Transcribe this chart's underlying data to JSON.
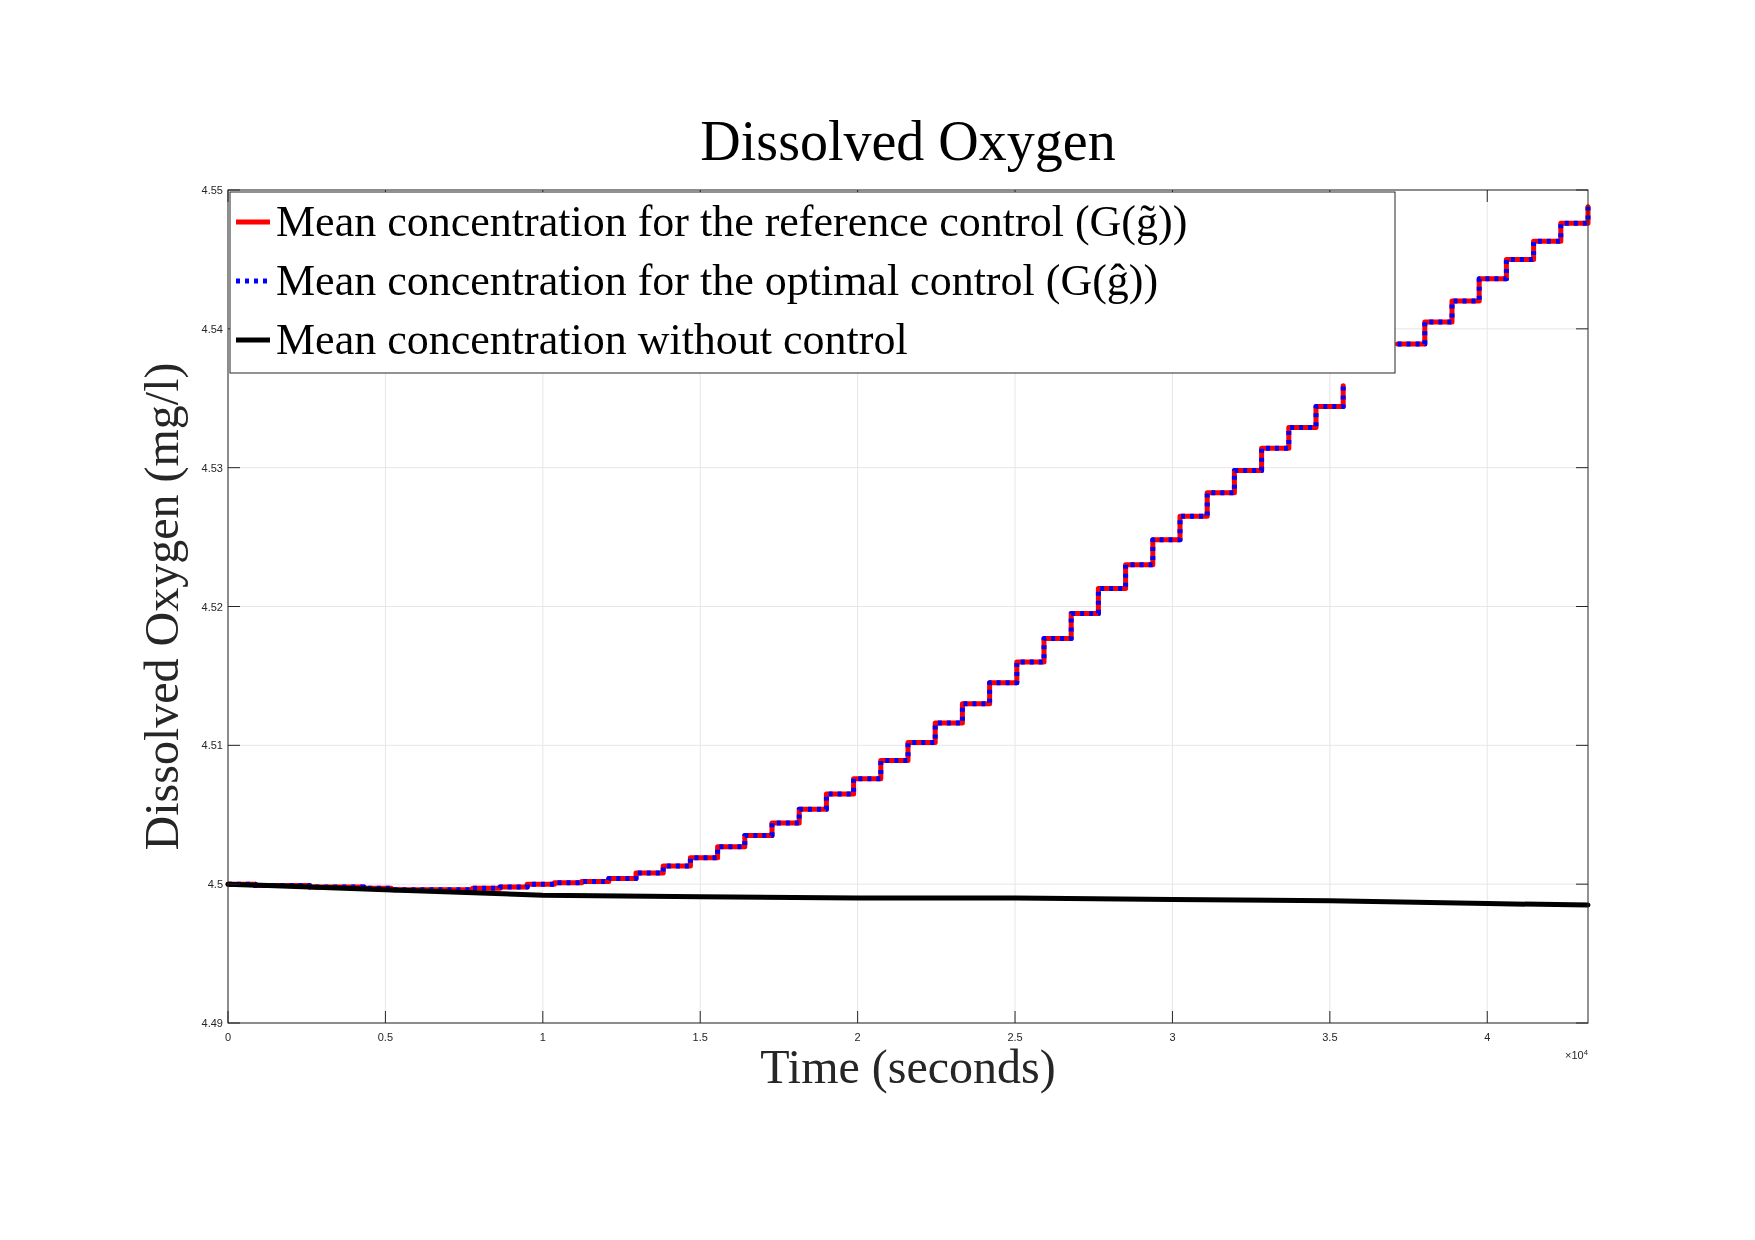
{
  "chart_data": {
    "type": "step",
    "title": "Dissolved Oxygen",
    "xlabel": "Time (seconds)",
    "ylabel": "Dissolved Oxygen (mg/l)",
    "annotations": [
      "×10$^{4}$"
    ],
    "xlim": [
      0,
      4.32
    ],
    "xticks": [
      0,
      0.5,
      1,
      1.5,
      2,
      2.5,
      3,
      3.5,
      4
    ],
    "ylim": [
      4.49,
      4.55
    ],
    "yticks": [
      4.49,
      4.5,
      4.51,
      4.52,
      4.53,
      4.54,
      4.55
    ],
    "grid": true,
    "legend": "top left",
    "marker": "none",
    "x": [
      0,
      0.0864,
      0.1728,
      0.2592,
      0.3456,
      0.432,
      0.5184,
      0.6048,
      0.6912,
      0.7776,
      0.864,
      0.9504,
      1.0368,
      1.1232,
      1.2096,
      1.296,
      1.3824,
      1.4688,
      1.5552,
      1.6416,
      1.728,
      1.8144,
      1.9008,
      1.9872,
      2.0736,
      2.16,
      2.2464,
      2.3328,
      2.4192,
      2.5056,
      2.592,
      2.6784,
      2.7648,
      2.8512,
      2.9376,
      3.024,
      3.1104,
      3.1968,
      3.2832,
      3.3696,
      3.456,
      3.5424,
      3.6288,
      3.7152,
      3.8016,
      3.888,
      3.9744,
      4.0608,
      4.1472,
      4.2336,
      4.32
    ],
    "series": [
      {
        "name": "Mean concentration for the reference control (G(g̃))",
        "color": "#ff0000",
        "line_style": "solid",
        "values": [
          4.5,
          4.4999,
          4.4999,
          4.4998,
          4.4998,
          4.4997,
          4.4996,
          4.4996,
          4.4996,
          4.4997,
          4.4998,
          4.5,
          4.5001,
          4.5002,
          4.5004,
          4.5008,
          4.5013,
          4.5019,
          4.5027,
          4.5035,
          4.5044,
          4.5054,
          4.5065,
          4.5076,
          4.5089,
          4.5102,
          4.5116,
          4.513,
          4.5145,
          4.516,
          4.5177,
          4.5195,
          4.5213,
          4.523,
          4.5248,
          4.5265,
          4.5282,
          4.5298,
          4.5314,
          4.5329,
          4.5344,
          4.5359,
          null,
          4.5389,
          4.5405,
          4.542,
          4.5436,
          4.545,
          4.5463,
          4.5476,
          4.5488
        ]
      },
      {
        "name": "Mean concentration for the optimal control (G(ĝ))",
        "color": "#0000ff",
        "line_style": "dotted",
        "values": [
          4.5,
          4.4999,
          4.4999,
          4.4998,
          4.4998,
          4.4997,
          4.4996,
          4.4996,
          4.4996,
          4.4997,
          4.4998,
          4.5,
          4.5001,
          4.5002,
          4.5004,
          4.5008,
          4.5013,
          4.5019,
          4.5027,
          4.5035,
          4.5044,
          4.5054,
          4.5065,
          4.5076,
          4.5089,
          4.5102,
          4.5116,
          4.513,
          4.5145,
          4.516,
          4.5177,
          4.5195,
          4.5213,
          4.523,
          4.5248,
          4.5265,
          4.5282,
          4.5298,
          4.5314,
          4.5329,
          4.5344,
          4.5359,
          null,
          4.5389,
          4.5405,
          4.542,
          4.5436,
          4.545,
          4.5463,
          4.5476,
          4.5488
        ]
      },
      {
        "name": "Mean concentration without control",
        "color": "#000000",
        "type": "line",
        "line_style": "solid",
        "x": [
          0,
          0.5,
          1,
          1.5,
          2,
          2.5,
          3,
          3.5,
          4,
          4.32
        ],
        "values": [
          4.5,
          4.4996,
          4.4992,
          4.4991,
          4.499,
          4.499,
          4.4989,
          4.4988,
          4.4986,
          4.4985
        ]
      }
    ]
  }
}
